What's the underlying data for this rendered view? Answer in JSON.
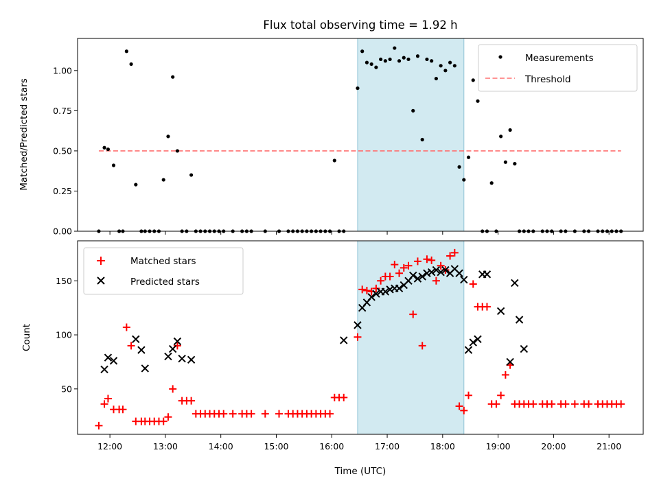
{
  "chart_data": [
    {
      "type": "scatter",
      "title": "Flux total observing time = 1.92 h",
      "xlabel": "",
      "ylabel": "Matched/Predicted stars",
      "xlim": [
        "11:25",
        "21:37"
      ],
      "ylim": [
        0,
        1.2
      ],
      "highlight_span": {
        "from": "16:28",
        "to": "18:23"
      },
      "legend_position": "top-right",
      "grid": false,
      "series": [
        {
          "name": "Measurements",
          "marker": "dot",
          "color": "#000000",
          "x": [
            "11:48",
            "11:54",
            "11:58",
            "12:04",
            "12:10",
            "12:14",
            "12:18",
            "12:23",
            "12:28",
            "12:34",
            "12:38",
            "12:43",
            "12:48",
            "12:53",
            "12:58",
            "13:03",
            "13:08",
            "13:13",
            "13:18",
            "13:23",
            "13:28",
            "13:33",
            "13:38",
            "13:43",
            "13:48",
            "13:53",
            "13:58",
            "14:03",
            "14:13",
            "14:23",
            "14:28",
            "14:33",
            "14:48",
            "15:03",
            "15:13",
            "15:18",
            "15:23",
            "15:28",
            "15:33",
            "15:38",
            "15:43",
            "15:48",
            "15:53",
            "15:58",
            "16:03",
            "16:08",
            "16:13",
            "16:28",
            "16:33",
            "16:38",
            "16:43",
            "16:48",
            "16:53",
            "16:58",
            "17:03",
            "17:08",
            "17:13",
            "17:18",
            "17:23",
            "17:28",
            "17:33",
            "17:38",
            "17:43",
            "17:48",
            "17:53",
            "17:58",
            "18:03",
            "18:08",
            "18:13",
            "18:18",
            "18:23",
            "18:28",
            "18:33",
            "18:38",
            "18:43",
            "18:48",
            "18:53",
            "18:58",
            "19:03",
            "19:08",
            "19:13",
            "19:18",
            "19:23",
            "19:28",
            "19:33",
            "19:38",
            "19:48",
            "19:53",
            "19:58",
            "20:08",
            "20:13",
            "20:23",
            "20:33",
            "20:38",
            "20:48",
            "20:53",
            "20:58",
            "21:03",
            "21:08",
            "21:13"
          ],
          "y": [
            0,
            0.52,
            0.51,
            0.41,
            0,
            0,
            1.12,
            1.04,
            0.29,
            0,
            0,
            0,
            0,
            0,
            0.32,
            0.59,
            0.96,
            0.5,
            0,
            0,
            0.35,
            0,
            0,
            0,
            0,
            0,
            0,
            0,
            0,
            0,
            0,
            0,
            0,
            0,
            0,
            0,
            0,
            0,
            0,
            0,
            0,
            0,
            0,
            0,
            0.44,
            0,
            0,
            0.89,
            1.12,
            1.05,
            1.04,
            1.02,
            1.07,
            1.06,
            1.07,
            1.14,
            1.06,
            1.08,
            1.07,
            0.75,
            1.09,
            0.57,
            1.07,
            1.06,
            0.95,
            1.03,
            1.0,
            1.05,
            1.03,
            0.4,
            0.32,
            0.46,
            0.94,
            0.81,
            0,
            0,
            0.3,
            0,
            0.59,
            0.43,
            0.63,
            0.42,
            0,
            0,
            0,
            0,
            0,
            0,
            0,
            0,
            0,
            0,
            0,
            0,
            0,
            0,
            0,
            0,
            0,
            0
          ]
        },
        {
          "name": "Threshold",
          "type": "line",
          "style": "dashed",
          "color": "#ff6f6f",
          "x": [
            "11:48",
            "21:13"
          ],
          "y": [
            0.5,
            0.5
          ]
        }
      ]
    },
    {
      "type": "scatter",
      "title": "",
      "xlabel": "Time (UTC)",
      "ylabel": "Count",
      "xlim": [
        "11:25",
        "21:37"
      ],
      "ylim": [
        8,
        187
      ],
      "yticks": [
        50,
        100,
        150
      ],
      "xticks": [
        "12:00",
        "13:00",
        "14:00",
        "15:00",
        "16:00",
        "17:00",
        "18:00",
        "19:00",
        "20:00",
        "21:00"
      ],
      "highlight_span": {
        "from": "16:28",
        "to": "18:23"
      },
      "legend_position": "top-left",
      "grid": false,
      "series": [
        {
          "name": "Matched stars",
          "marker": "plus",
          "color": "#ff0000",
          "x": [
            "11:48",
            "11:54",
            "11:58",
            "12:04",
            "12:10",
            "12:14",
            "12:18",
            "12:23",
            "12:28",
            "12:34",
            "12:38",
            "12:43",
            "12:48",
            "12:53",
            "12:58",
            "13:03",
            "13:08",
            "13:13",
            "13:18",
            "13:23",
            "13:28",
            "13:33",
            "13:38",
            "13:43",
            "13:48",
            "13:53",
            "13:58",
            "14:03",
            "14:13",
            "14:23",
            "14:28",
            "14:33",
            "14:48",
            "15:03",
            "15:13",
            "15:18",
            "15:23",
            "15:28",
            "15:33",
            "15:38",
            "15:43",
            "15:48",
            "15:53",
            "15:58",
            "16:03",
            "16:08",
            "16:13",
            "16:28",
            "16:33",
            "16:38",
            "16:43",
            "16:48",
            "16:53",
            "16:58",
            "17:03",
            "17:08",
            "17:13",
            "17:18",
            "17:23",
            "17:28",
            "17:33",
            "17:38",
            "17:43",
            "17:48",
            "17:53",
            "17:58",
            "18:03",
            "18:08",
            "18:13",
            "18:18",
            "18:23",
            "18:28",
            "18:33",
            "18:38",
            "18:43",
            "18:48",
            "18:53",
            "18:58",
            "19:03",
            "19:08",
            "19:13",
            "19:18",
            "19:23",
            "19:28",
            "19:33",
            "19:38",
            "19:48",
            "19:53",
            "19:58",
            "20:08",
            "20:13",
            "20:23",
            "20:33",
            "20:38",
            "20:48",
            "20:53",
            "20:58",
            "21:03",
            "21:08",
            "21:13"
          ],
          "y": [
            16,
            36,
            41,
            31,
            31,
            31,
            107,
            90,
            20,
            20,
            20,
            20,
            20,
            20,
            20,
            24,
            50,
            90,
            39,
            39,
            39,
            27,
            27,
            27,
            27,
            27,
            27,
            27,
            27,
            27,
            27,
            27,
            27,
            27,
            27,
            27,
            27,
            27,
            27,
            27,
            27,
            27,
            27,
            27,
            42,
            42,
            42,
            98,
            142,
            141,
            140,
            143,
            150,
            154,
            154,
            165,
            157,
            162,
            164,
            119,
            168,
            90,
            170,
            169,
            150,
            164,
            160,
            173,
            176,
            34,
            30,
            44,
            147,
            126,
            126,
            126,
            36,
            36,
            44,
            63,
            72,
            36,
            36,
            36,
            36,
            36,
            36,
            36,
            36,
            36,
            36,
            36,
            36,
            36,
            36,
            36,
            36,
            36,
            36,
            36
          ]
        },
        {
          "name": "Predicted stars",
          "marker": "x",
          "color": "#000000",
          "x": [
            "11:54",
            "11:58",
            "12:04",
            "12:28",
            "12:34",
            "12:38",
            "13:03",
            "13:08",
            "13:13",
            "13:18",
            "13:28",
            "16:13",
            "16:28",
            "16:33",
            "16:38",
            "16:43",
            "16:48",
            "16:53",
            "16:58",
            "17:03",
            "17:08",
            "17:13",
            "17:18",
            "17:23",
            "17:28",
            "17:33",
            "17:38",
            "17:43",
            "17:48",
            "17:53",
            "17:58",
            "18:03",
            "18:08",
            "18:13",
            "18:18",
            "18:23",
            "18:28",
            "18:33",
            "18:38",
            "18:43",
            "18:48",
            "19:03",
            "19:13",
            "19:18",
            "19:23",
            "19:28"
          ],
          "y": [
            68,
            79,
            76,
            96,
            86,
            69,
            80,
            87,
            94,
            78,
            77,
            95,
            109,
            125,
            130,
            135,
            138,
            140,
            140,
            142,
            143,
            143,
            146,
            150,
            155,
            152,
            154,
            157,
            158,
            160,
            158,
            160,
            157,
            161,
            157,
            151,
            86,
            93,
            96,
            156,
            156,
            122,
            75,
            148,
            114,
            87
          ]
        }
      ]
    }
  ]
}
